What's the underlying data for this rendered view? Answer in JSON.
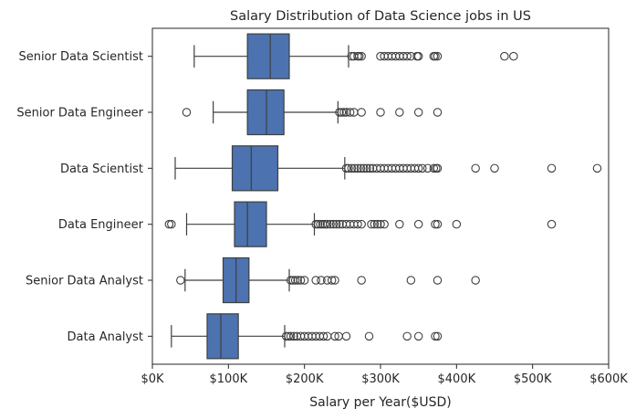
{
  "chart_data": {
    "type": "boxplot",
    "orientation": "horizontal",
    "title": "Salary Distribution of Data Science jobs in US",
    "xlabel": "Salary per Year($USD)",
    "ylabel": "",
    "xlim": [
      0,
      600000
    ],
    "xticks": [
      0,
      100000,
      200000,
      300000,
      400000,
      500000,
      600000
    ],
    "xtick_labels": [
      "$0K",
      "$100K",
      "$200K",
      "$300K",
      "$400K",
      "$500K",
      "$600K"
    ],
    "grid": false,
    "box_color": "#4c72b0",
    "categories": [
      {
        "name": "Senior Data Scientist",
        "whisker_low": 55000,
        "q1": 125000,
        "median": 155000,
        "q3": 180000,
        "whisker_high": 258000,
        "outliers": [
          262000,
          265000,
          270000,
          272000,
          275000,
          300000,
          305000,
          310000,
          315000,
          320000,
          325000,
          330000,
          335000,
          340000,
          348000,
          350000,
          370000,
          372000,
          375000,
          463000,
          475000
        ]
      },
      {
        "name": "Senior Data Engineer",
        "whisker_low": 80000,
        "q1": 125000,
        "median": 150000,
        "q3": 173000,
        "whisker_high": 244000,
        "outliers": [
          45000,
          246000,
          249000,
          252000,
          255000,
          260000,
          265000,
          275000,
          300000,
          325000,
          350000,
          375000
        ]
      },
      {
        "name": "Data Scientist",
        "whisker_low": 30000,
        "q1": 105000,
        "median": 130000,
        "q3": 165000,
        "whisker_high": 253000,
        "outliers": [
          255000,
          258000,
          262000,
          266000,
          270000,
          274000,
          278000,
          282000,
          286000,
          290000,
          295000,
          300000,
          305000,
          310000,
          315000,
          320000,
          325000,
          330000,
          335000,
          340000,
          345000,
          350000,
          355000,
          362000,
          370000,
          373000,
          375000,
          425000,
          450000,
          525000,
          585000
        ]
      },
      {
        "name": "Data Engineer",
        "whisker_low": 45000,
        "q1": 108000,
        "median": 125000,
        "q3": 150000,
        "whisker_high": 213000,
        "outliers": [
          22000,
          25000,
          215000,
          218000,
          221000,
          224000,
          227000,
          230000,
          234000,
          238000,
          242000,
          246000,
          250000,
          255000,
          260000,
          265000,
          270000,
          275000,
          288000,
          292000,
          296000,
          300000,
          305000,
          325000,
          350000,
          372000,
          375000,
          400000,
          525000
        ]
      },
      {
        "name": "Senior Data Analyst",
        "whisker_low": 43000,
        "q1": 93000,
        "median": 110000,
        "q3": 127000,
        "whisker_high": 180000,
        "outliers": [
          37000,
          182000,
          185000,
          188000,
          191000,
          195000,
          200000,
          215000,
          222000,
          230000,
          236000,
          240000,
          275000,
          340000,
          375000,
          425000
        ]
      },
      {
        "name": "Data Analyst",
        "whisker_low": 25000,
        "q1": 72000,
        "median": 90000,
        "q3": 113000,
        "whisker_high": 174000,
        "outliers": [
          176000,
          179000,
          182000,
          186000,
          190000,
          195000,
          200000,
          205000,
          210000,
          215000,
          220000,
          225000,
          230000,
          240000,
          245000,
          255000,
          285000,
          335000,
          350000,
          372000,
          375000
        ]
      }
    ]
  }
}
